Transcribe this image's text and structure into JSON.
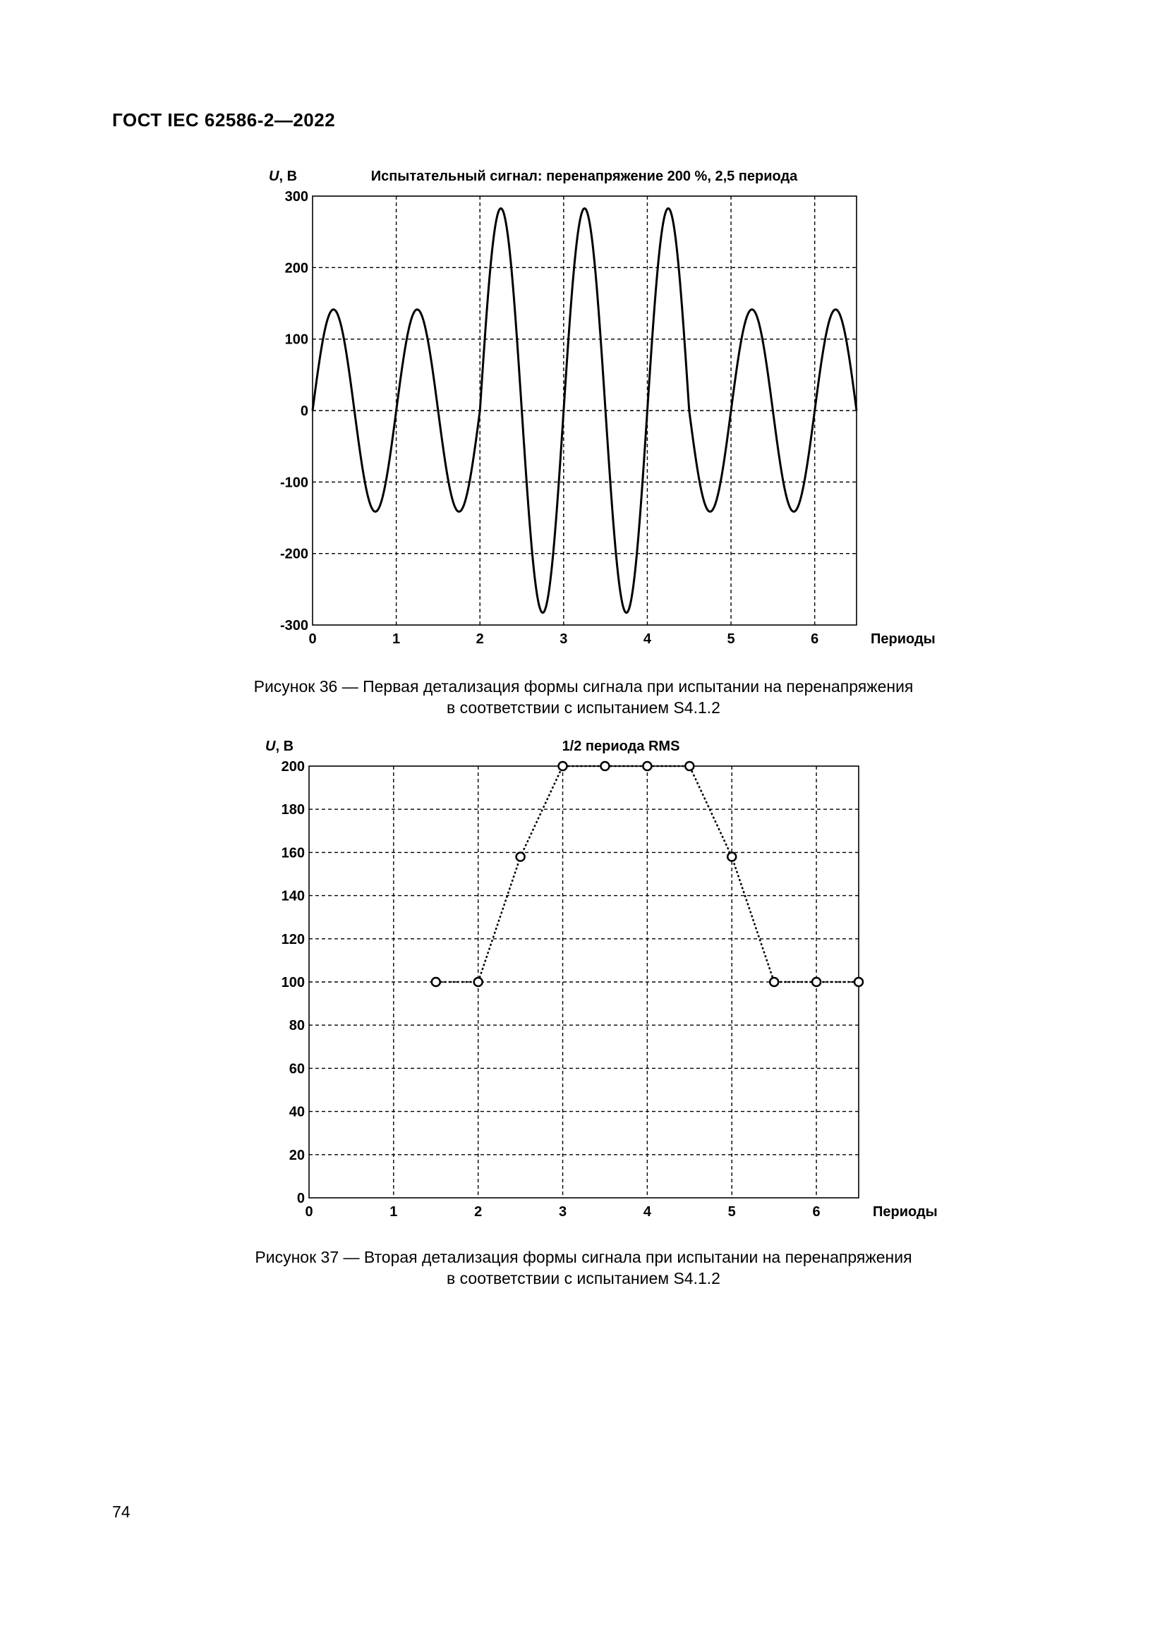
{
  "header": {
    "doc_code": "ГОСТ IEC 62586-2—2022"
  },
  "figure36": {
    "caption_line1": "Рисунок 36 — Первая детализация формы сигнала при испытании на перенапряжения",
    "caption_line2": "в соответствии с испытанием S4.1.2"
  },
  "figure37": {
    "caption_line1": "Рисунок 37 — Вторая детализация формы сигнала при испытании на перенапряжения",
    "caption_line2": "в соответствии с испытанием S4.1.2"
  },
  "page_number": "74",
  "chart_data": [
    {
      "type": "line",
      "title": "Испытательный сигнал: перенапряжение 200 %, 2,5 периода",
      "ylabel_italic": "U",
      "ylabel_unit": ", В",
      "xlabel": "Периоды",
      "xlim": [
        0,
        6.5
      ],
      "ylim": [
        -300,
        300
      ],
      "xticks": [
        "0",
        "1",
        "2",
        "3",
        "4",
        "5",
        "6"
      ],
      "yticks": [
        "300",
        "200",
        "100",
        "0",
        "-100",
        "-200",
        "-300"
      ],
      "grid": true,
      "series": [
        {
          "signal": "sine",
          "nominal_amplitude": 141.4,
          "overvoltage_amplitude": 282.8,
          "overvoltage_start": 2,
          "overvoltage_end": 4.5
        }
      ]
    },
    {
      "type": "line",
      "title": "1/2 периода RMS",
      "ylabel_italic": "U",
      "ylabel_unit": ", В",
      "xlabel": "Периоды",
      "xlim": [
        0,
        6.5
      ],
      "ylim": [
        0,
        200
      ],
      "xticks": [
        "0",
        "1",
        "2",
        "3",
        "4",
        "5",
        "6"
      ],
      "yticks": [
        "200",
        "180",
        "160",
        "140",
        "120",
        "100",
        "80",
        "60",
        "40",
        "20",
        "0"
      ],
      "grid": true,
      "series": [
        {
          "marker": "circle",
          "x": [
            1.5,
            2,
            2.5,
            3,
            3.5,
            4,
            4.5,
            5,
            5.5,
            6,
            6.5
          ],
          "y": [
            100,
            100,
            158,
            200,
            200,
            200,
            200,
            158,
            100,
            100,
            100
          ]
        }
      ]
    }
  ]
}
